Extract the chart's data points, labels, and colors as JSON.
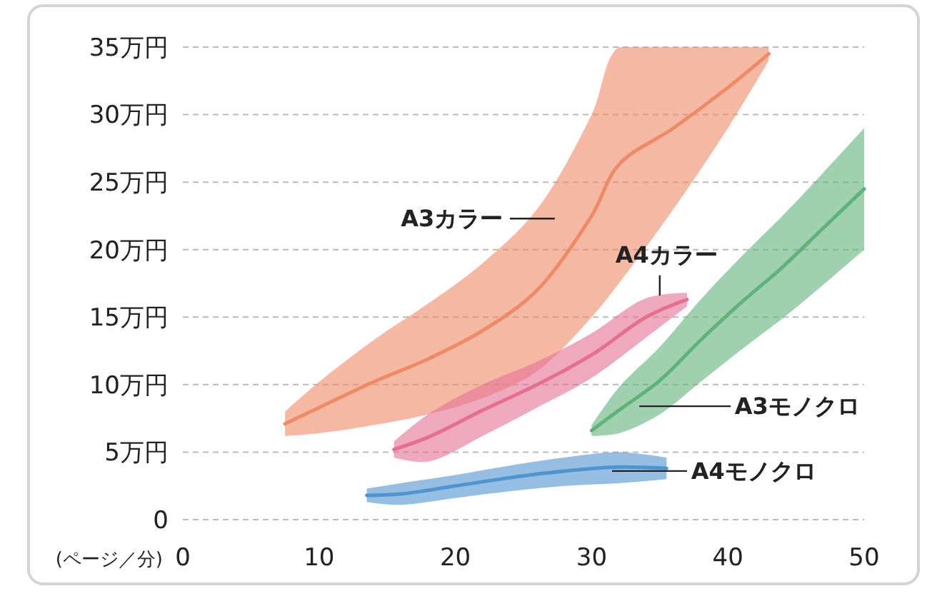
{
  "chart_data": {
    "type": "line",
    "xlabel": "(ページ／分)",
    "xlim": [
      0,
      50
    ],
    "xticks": [
      0,
      10,
      20,
      30,
      40,
      50
    ],
    "ylim": [
      0,
      35
    ],
    "yticks": [
      {
        "value": 0,
        "label": "0"
      },
      {
        "value": 5,
        "label": "5万円"
      },
      {
        "value": 10,
        "label": "10万円"
      },
      {
        "value": 15,
        "label": "15万円"
      },
      {
        "value": 20,
        "label": "20万円"
      },
      {
        "value": 25,
        "label": "25万円"
      },
      {
        "value": 30,
        "label": "30万円"
      },
      {
        "value": 35,
        "label": "35万円"
      }
    ],
    "grid": "y",
    "legend": false,
    "marker": "none",
    "series": [
      {
        "name": "A3カラー",
        "color": "#ee8a66",
        "x": [
          7.5,
          10,
          14,
          18,
          22,
          26,
          30,
          32,
          36,
          40,
          43
        ],
        "values": [
          7.1,
          8.3,
          10.2,
          11.9,
          14,
          17,
          22.5,
          26.3,
          29,
          32,
          34.5
        ],
        "lower": [
          6.2,
          6.4,
          7,
          7.8,
          9,
          11,
          15,
          17.5,
          23,
          29,
          34
        ],
        "upper": [
          8,
          10.2,
          13.3,
          16,
          19,
          23,
          30,
          35,
          35,
          35,
          35
        ]
      },
      {
        "name": "A4カラー",
        "color": "#e56f94",
        "x": [
          15.5,
          18,
          22,
          26,
          30,
          34,
          37
        ],
        "values": [
          5.2,
          6.1,
          8.1,
          10,
          12.2,
          15,
          16.3
        ],
        "lower": [
          4.6,
          4.3,
          6.2,
          8.3,
          10.5,
          13.5,
          15.8
        ],
        "upper": [
          5.8,
          7.8,
          10,
          11.7,
          13.8,
          16.4,
          16.8
        ]
      },
      {
        "name": "A3モノクロ",
        "color": "#5fb27a",
        "x": [
          30,
          32,
          35,
          38,
          41,
          44,
          47,
          50
        ],
        "values": [
          6.6,
          8.1,
          10.3,
          13.3,
          16.1,
          18.7,
          21.6,
          24.5
        ],
        "lower": [
          6.2,
          6.4,
          7.8,
          10.2,
          12.6,
          14.9,
          17.4,
          20
        ],
        "upper": [
          7,
          9.8,
          12.8,
          16.3,
          19.5,
          22.5,
          25.7,
          29
        ]
      },
      {
        "name": "A4モノクロ",
        "color": "#4f93cf",
        "x": [
          13.5,
          16,
          20,
          24,
          28,
          32,
          35.5
        ],
        "values": [
          1.8,
          1.9,
          2.5,
          3.1,
          3.6,
          3.9,
          3.8
        ],
        "lower": [
          1.3,
          1.1,
          1.6,
          2.1,
          2.5,
          2.7,
          3
        ],
        "upper": [
          2.3,
          2.7,
          3.3,
          4,
          4.6,
          5,
          4.6
        ]
      }
    ]
  }
}
